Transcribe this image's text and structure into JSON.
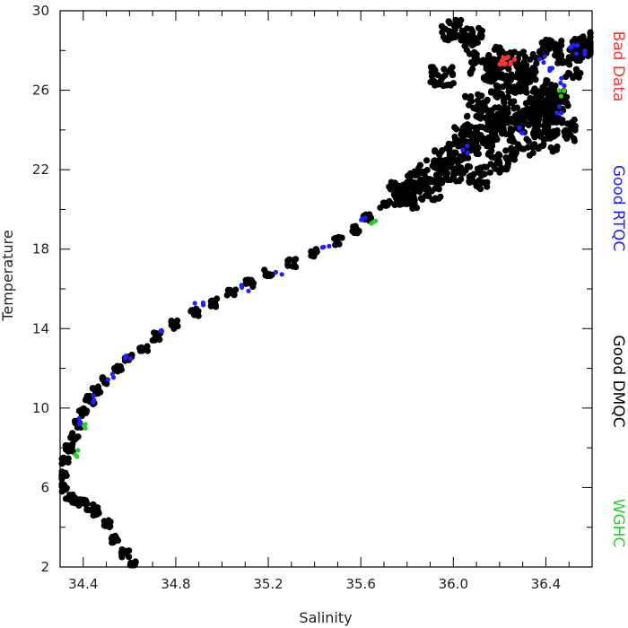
{
  "chart_data": {
    "type": "scatter",
    "title": "",
    "xlabel": "Salinity",
    "ylabel": "Temperature",
    "xlim": [
      34.3,
      36.6
    ],
    "ylim": [
      2,
      30
    ],
    "x_ticks": [
      "34.4",
      "34.8",
      "35.2",
      "35.6",
      "36.0",
      "36.4"
    ],
    "y_ticks": [
      "2",
      "6",
      "10",
      "14",
      "18",
      "22",
      "26",
      "30"
    ],
    "grid": false,
    "legend_placement": "right",
    "series": [
      {
        "name": "Good DMQC",
        "color": "#000000",
        "x": [
          34.62,
          34.58,
          34.54,
          34.5,
          34.46,
          34.43,
          34.4,
          34.37,
          34.34,
          34.31,
          34.31,
          34.32,
          34.34,
          34.36,
          34.38,
          34.4,
          34.43,
          34.46,
          34.5,
          34.55,
          34.6,
          34.66,
          34.72,
          34.8,
          34.88,
          34.96,
          35.04,
          35.12,
          35.2,
          35.3,
          35.4,
          35.5,
          35.58,
          35.63,
          35.7,
          35.77,
          35.84,
          35.9,
          35.96,
          36.02,
          36.08,
          36.14,
          36.2,
          36.26,
          36.32,
          36.38,
          36.44,
          36.48,
          35.8,
          35.9,
          36.0,
          36.1,
          36.2,
          36.3,
          36.4,
          36.05,
          36.15,
          36.25,
          36.35,
          36.45,
          36.1,
          36.2,
          36.3,
          36.4,
          36.5,
          36.22,
          36.32,
          36.42,
          36.55,
          36.58,
          36.0,
          36.08,
          36.12,
          35.95,
          36.18,
          36.28,
          36.38
        ],
        "y": [
          2.1,
          2.7,
          3.4,
          4.2,
          4.8,
          5.0,
          5.2,
          5.4,
          5.6,
          6.0,
          6.6,
          7.3,
          8.0,
          8.6,
          9.2,
          9.8,
          10.4,
          10.9,
          11.4,
          12.0,
          12.5,
          13.0,
          13.6,
          14.2,
          14.8,
          15.3,
          15.8,
          16.3,
          16.8,
          17.3,
          17.8,
          18.4,
          19.0,
          19.6,
          20.2,
          20.8,
          21.4,
          21.9,
          22.4,
          22.9,
          23.3,
          23.7,
          24.0,
          24.3,
          24.6,
          24.9,
          25.1,
          24.0,
          20.6,
          21.0,
          22.0,
          21.6,
          22.4,
          23.0,
          23.4,
          23.8,
          24.6,
          24.9,
          25.4,
          25.6,
          25.2,
          26.2,
          26.4,
          26.0,
          27.2,
          27.6,
          27.4,
          28.0,
          28.2,
          28.4,
          29.0,
          28.6,
          27.4,
          26.6,
          27.0,
          26.8,
          24.2
        ]
      },
      {
        "name": "Good RTQC",
        "color": "#1f1fff",
        "x": [
          34.4,
          34.45,
          34.52,
          34.6,
          34.75,
          34.9,
          35.1,
          35.25,
          35.45,
          35.6,
          36.05,
          36.3,
          36.38,
          36.42,
          36.48,
          36.52,
          36.55,
          36.45
        ],
        "y": [
          9.3,
          10.5,
          11.6,
          12.6,
          14.0,
          15.2,
          16.0,
          16.8,
          18.2,
          19.6,
          23.0,
          24.0,
          27.6,
          27.0,
          26.4,
          28.2,
          28.0,
          25.0
        ]
      },
      {
        "name": "WGHC",
        "color": "#2ecc2e",
        "x": [
          34.38,
          34.41,
          36.47,
          35.65
        ],
        "y": [
          7.7,
          9.1,
          25.8,
          19.5
        ]
      },
      {
        "name": "Bad Data",
        "color": "#ff3333",
        "x": [
          36.2,
          36.22,
          36.24,
          36.26
        ],
        "y": [
          27.5,
          27.5,
          27.5,
          27.5
        ]
      }
    ],
    "legend": [
      "Bad Data",
      "Good RTQC",
      "Good DMQC",
      "WGHC"
    ]
  }
}
